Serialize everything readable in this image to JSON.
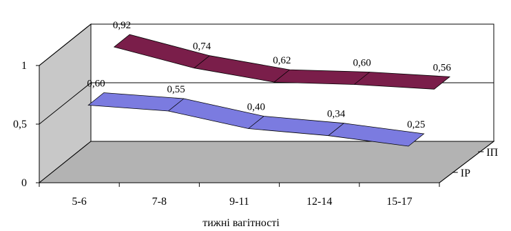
{
  "chart_data": {
    "type": "area",
    "title": "",
    "xlabel": "тижні вагітності",
    "ylabel": "",
    "ylim": [
      0,
      1
    ],
    "yticks": [
      "0",
      "0,5",
      "1"
    ],
    "categories": [
      "5-6",
      "7-8",
      "9-11",
      "12-14",
      "15-17"
    ],
    "grid": true,
    "legend": "none",
    "series": [
      {
        "name": "ІР",
        "color": "#7B7BE0",
        "values": [
          0.6,
          0.55,
          0.4,
          0.34,
          0.25
        ],
        "labels": [
          "0,60",
          "0,55",
          "0,40",
          "0,34",
          "0,25"
        ]
      },
      {
        "name": "ІП",
        "color": "#7A1E4A",
        "values": [
          0.92,
          0.74,
          0.62,
          0.6,
          0.56
        ],
        "labels": [
          "0,92",
          "0,74",
          "0,62",
          "0,60",
          "0,56"
        ]
      }
    ],
    "colors": {
      "floor": "#B3B3B3",
      "wall": "#FFFFFF",
      "axis": "#000000"
    }
  }
}
